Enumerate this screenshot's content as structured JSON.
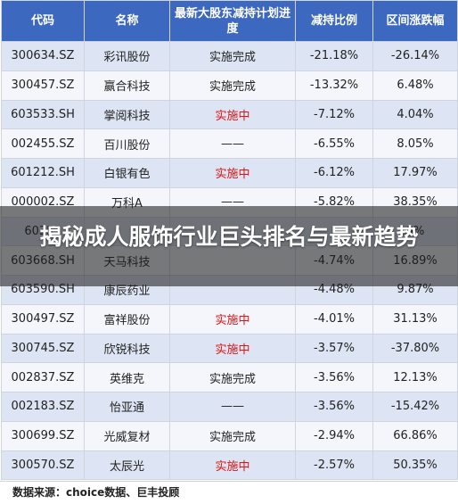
{
  "table": {
    "headers": [
      "代码",
      "名称",
      "最新大股东减持计划进度",
      "减持比例",
      "区间涨跌幅"
    ],
    "rows": [
      [
        "300634.SZ",
        "彩讯股份",
        "实施完成",
        "-21.18%",
        "-26.14%"
      ],
      [
        "300457.SZ",
        "赢合科技",
        "实施完成",
        "-13.32%",
        "6.48%"
      ],
      [
        "603533.SH",
        "掌阅科技",
        "实施中",
        "-7.12%",
        "4.04%"
      ],
      [
        "002455.SZ",
        "百川股份",
        "——",
        "-6.55%",
        "8.05%"
      ],
      [
        "601212.SH",
        "白银有色",
        "实施中",
        "-6.12%",
        "17.97%"
      ],
      [
        "000002.SZ",
        "万科A",
        "——",
        "-5.82%",
        "38.35%"
      ],
      [
        "60357",
        "",
        "",
        "",
        "0%"
      ],
      [
        "603668.SH",
        "天马科技",
        "",
        "-4.74%",
        "16.89%"
      ],
      [
        "603590.SH",
        "康辰药业",
        "",
        "-4.48%",
        "9.87%"
      ],
      [
        "300497.SZ",
        "富祥股份",
        "实施中",
        "-4.01%",
        "31.13%"
      ],
      [
        "300745.SZ",
        "欣锐科技",
        "实施中",
        "-3.57%",
        "-37.80%"
      ],
      [
        "002837.SZ",
        "英维克",
        "实施完成",
        "-3.56%",
        "12.13%"
      ],
      [
        "002183.SZ",
        "怡亚通",
        "——",
        "-3.56%",
        "-15.42%"
      ],
      [
        "300699.SZ",
        "光威复材",
        "实施完成",
        "-2.94%",
        "66.86%"
      ],
      [
        "300570.SZ",
        "太辰光",
        "实施中",
        "-2.57%",
        "50.35%"
      ]
    ]
  },
  "source_note": "数据来源：choice数据、巨丰投顾",
  "overlay_title": "揭秘成人服饰行业巨头排名与最新趋势",
  "colors": {
    "header_bg": "#3d68bf",
    "row_odd": "#dde4f3",
    "row_even": "#f4f6fb",
    "in_progress_text": "#e01414"
  }
}
